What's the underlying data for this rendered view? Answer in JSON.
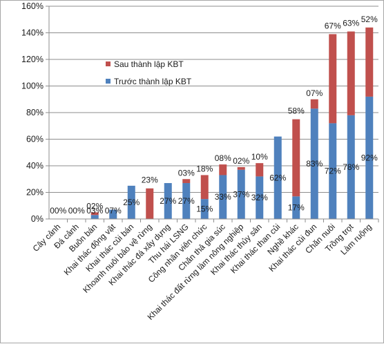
{
  "chart_data": {
    "type": "bar",
    "stacked": true,
    "categories": [
      "Cây cảnh",
      "Đá cảnh",
      "Buôn bán",
      "Khai thác động vật",
      "Khai thác củi bán",
      "Khoanh nuôi bảo vệ rừng",
      "Khai thác đá xây dựng",
      "Thu hái LSNG",
      "Công nhân viên chức",
      "Chăn thả gia súc",
      "Khai thác đất rừng làm nông nghiệp",
      "Khai thác thủy sản",
      "Khai thác than củi",
      "Nghề khác",
      "Khai thác củi đun",
      "Chăn nuôi",
      "Trồng trọt",
      "Làm ruộng"
    ],
    "series": [
      {
        "name": "Trước thành lập KBT",
        "color": "#4f81bd",
        "values": [
          0,
          0,
          3,
          7,
          25,
          0,
          27,
          27,
          15,
          33,
          37,
          32,
          62,
          17,
          83,
          72,
          78,
          92
        ],
        "labels": [
          "00%",
          "00%",
          "03%",
          "07%",
          "25%",
          "",
          "27%",
          "27%",
          "15%",
          "33%",
          "37%",
          "32%",
          "62%",
          "17%",
          "83%",
          "72%",
          "78%",
          "92%"
        ]
      },
      {
        "name": "Sau thành lập KBT",
        "color": "#c0504d",
        "values": [
          0,
          0,
          2,
          0,
          0,
          23,
          0,
          3,
          18,
          8,
          2,
          10,
          0,
          58,
          7,
          67,
          63,
          52
        ],
        "labels": [
          "",
          "",
          "02%",
          "",
          "",
          "23%",
          "",
          "03%",
          "18%",
          "08%",
          "02%",
          "10%",
          "",
          "58%",
          "07%",
          "67%",
          "63%",
          "52%"
        ]
      }
    ],
    "ylim": [
      0,
      160
    ],
    "yticks": [
      "0%",
      "20%",
      "40%",
      "60%",
      "80%",
      "100%",
      "120%",
      "140%",
      "160%"
    ],
    "legend": "upper-left inside plot",
    "grid": true
  }
}
